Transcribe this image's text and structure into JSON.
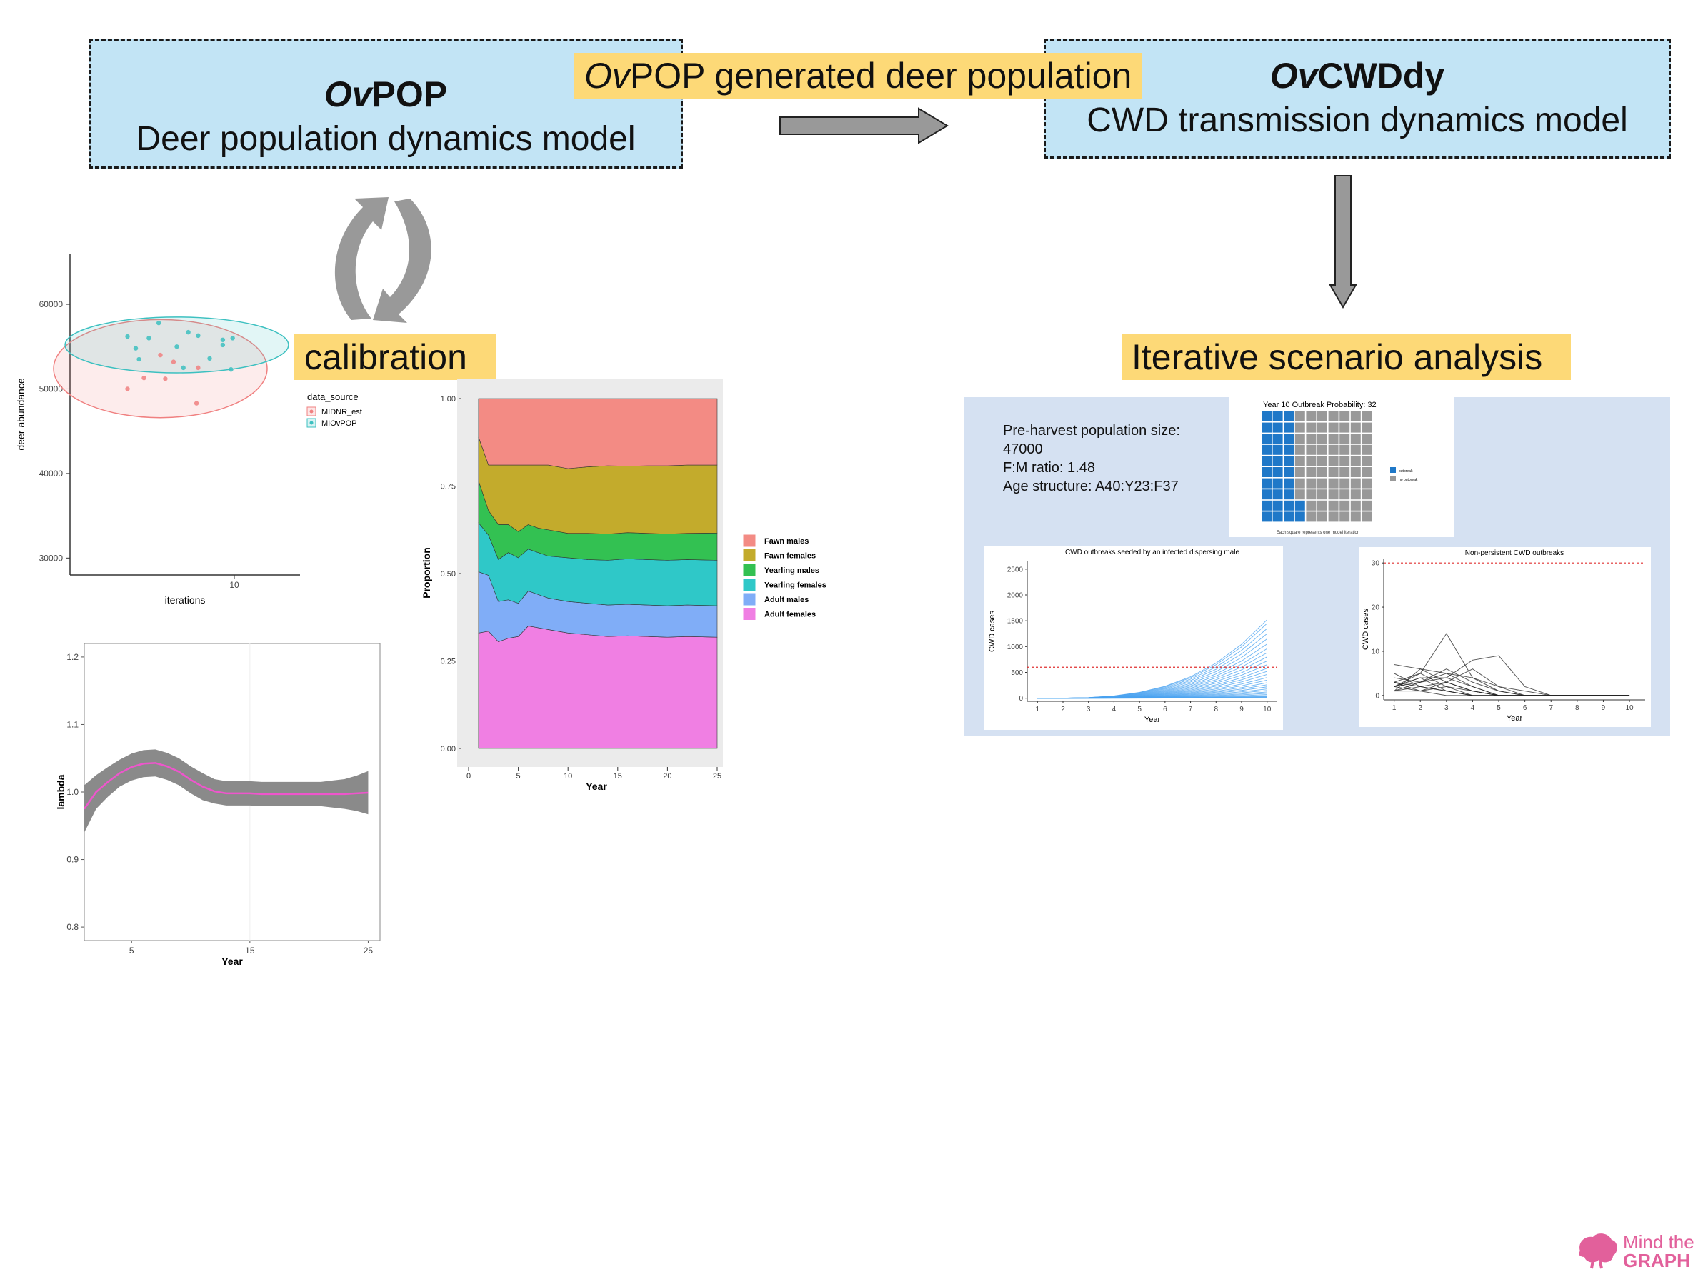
{
  "ovpop_box": {
    "title_italic": "Ov",
    "title_rest": "POP",
    "subtitle": "Deer population dynamics model"
  },
  "ovcwd_box": {
    "title_italic": "Ov",
    "title_rest": "CWDdy",
    "subtitle": "CWD transmission dynamics model"
  },
  "arrow_label": {
    "italic": "Ov",
    "rest": "POP generated deer population"
  },
  "calibration_label": "calibration",
  "scenario_label": "Iterative scenario analysis",
  "scenario_info": {
    "line1": "Pre-harvest population size:",
    "line2": "47000",
    "line3": "F:M ratio: 1.48",
    "line4": "Age structure: A40:Y23:F37"
  },
  "logo": {
    "line1": "Mind the",
    "line2": "GRAPH"
  },
  "chart_data": [
    {
      "id": "scatter",
      "type": "scatter",
      "xlabel": "iterations",
      "ylabel": "deer abundance",
      "xticks": [
        "10"
      ],
      "yticks": [
        "30000",
        "40000",
        "50000",
        "60000"
      ],
      "ylim": [
        28000,
        66000
      ],
      "xlim": [
        0,
        14
      ],
      "legend_title": "data_source",
      "legend_position": "right",
      "series": [
        {
          "name": "MIDNR_est",
          "color": "#f08080",
          "points": [
            [
              3.5,
              50000
            ],
            [
              4.5,
              51300
            ],
            [
              5.8,
              51200
            ],
            [
              7.7,
              48300
            ],
            [
              5.5,
              54000
            ],
            [
              6.3,
              53200
            ],
            [
              7.8,
              52500
            ]
          ],
          "ellipse": {
            "cx": 5.5,
            "cy": 52400,
            "rx": 6.5,
            "ry": 5800
          }
        },
        {
          "name": "MIOvPOP",
          "color": "#3cc0c0",
          "points": [
            [
              3.5,
              56200
            ],
            [
              4,
              54800
            ],
            [
              4.8,
              56000
            ],
            [
              5.4,
              57800
            ],
            [
              6.5,
              55000
            ],
            [
              7.2,
              56700
            ],
            [
              7.8,
              56300
            ],
            [
              8.5,
              53600
            ],
            [
              9.3,
              55800
            ],
            [
              9.3,
              55200
            ],
            [
              9.8,
              52300
            ],
            [
              9.9,
              56000
            ],
            [
              4.2,
              53500
            ],
            [
              6.9,
              52500
            ]
          ],
          "ellipse": {
            "cx": 6.5,
            "cy": 55200,
            "rx": 6.8,
            "ry": 3300
          }
        }
      ]
    },
    {
      "id": "lambda",
      "type": "line",
      "xlabel": "Year",
      "ylabel": "lambda",
      "xticks": [
        "5",
        "15",
        "25"
      ],
      "yticks": [
        "0.8",
        "0.9",
        "1.0",
        "1.1",
        "1.2"
      ],
      "xlim": [
        1,
        26
      ],
      "ylim": [
        0.78,
        1.22
      ],
      "series": [
        {
          "name": "",
          "color": "#ee55cc",
          "x": [
            1,
            2,
            3,
            4,
            5,
            6,
            7,
            8,
            9,
            10,
            11,
            12,
            13,
            14,
            15,
            16,
            17,
            18,
            19,
            20,
            21,
            22,
            23,
            24,
            25
          ],
          "y": [
            0.975,
            1.0,
            1.015,
            1.028,
            1.037,
            1.042,
            1.043,
            1.038,
            1.03,
            1.018,
            1.008,
            1.001,
            0.998,
            0.998,
            0.998,
            0.997,
            0.997,
            0.997,
            0.997,
            0.997,
            0.997,
            0.997,
            0.997,
            0.998,
            0.999
          ],
          "band_halfwidth": [
            0.035,
            0.025,
            0.022,
            0.02,
            0.02,
            0.02,
            0.02,
            0.02,
            0.02,
            0.02,
            0.02,
            0.018,
            0.018,
            0.018,
            0.018,
            0.018,
            0.018,
            0.018,
            0.018,
            0.018,
            0.018,
            0.02,
            0.022,
            0.026,
            0.032
          ]
        }
      ]
    },
    {
      "id": "proportion",
      "type": "area",
      "xlabel": "Year",
      "ylabel": "Proportion",
      "xticks": [
        "0",
        "5",
        "10",
        "15",
        "20",
        "25"
      ],
      "yticks": [
        "0.00",
        "0.25",
        "0.50",
        "0.75",
        "1.00"
      ],
      "xlim": [
        0,
        25
      ],
      "ylim": [
        0,
        1
      ],
      "legend_position": "right",
      "x": [
        1,
        2,
        3,
        4,
        5,
        6,
        7,
        8,
        10,
        12,
        14,
        16,
        18,
        20,
        22,
        25
      ],
      "series": [
        {
          "name": "Adult females",
          "color": "#f07fe3",
          "values": [
            0.33,
            0.335,
            0.305,
            0.315,
            0.32,
            0.35,
            0.345,
            0.34,
            0.33,
            0.325,
            0.32,
            0.322,
            0.32,
            0.318,
            0.32,
            0.318
          ]
        },
        {
          "name": "Adult males",
          "color": "#80adf7",
          "values": [
            0.175,
            0.16,
            0.115,
            0.11,
            0.095,
            0.1,
            0.095,
            0.09,
            0.09,
            0.09,
            0.09,
            0.09,
            0.09,
            0.09,
            0.09,
            0.09
          ]
        },
        {
          "name": "Yearling females",
          "color": "#2fc8c8",
          "values": [
            0.14,
            0.115,
            0.12,
            0.135,
            0.13,
            0.12,
            0.12,
            0.12,
            0.125,
            0.125,
            0.128,
            0.13,
            0.13,
            0.13,
            0.13,
            0.13
          ]
        },
        {
          "name": "Yearling males",
          "color": "#33c152",
          "values": [
            0.12,
            0.07,
            0.1,
            0.08,
            0.075,
            0.07,
            0.07,
            0.075,
            0.07,
            0.075,
            0.075,
            0.075,
            0.075,
            0.075,
            0.075,
            0.078
          ]
        },
        {
          "name": "Fawn females",
          "color": "#c3ab2c",
          "values": [
            0.125,
            0.13,
            0.17,
            0.17,
            0.19,
            0.17,
            0.18,
            0.185,
            0.185,
            0.19,
            0.195,
            0.19,
            0.193,
            0.195,
            0.195,
            0.194
          ]
        },
        {
          "name": "Fawn males",
          "color": "#f38b84",
          "values": [
            0.11,
            0.19,
            0.19,
            0.19,
            0.19,
            0.19,
            0.19,
            0.19,
            0.2,
            0.195,
            0.192,
            0.193,
            0.192,
            0.192,
            0.19,
            0.19
          ]
        }
      ]
    },
    {
      "id": "waffle",
      "type": "heatmap",
      "title": "Year 10 Outbreak Probability: 32",
      "caption": "Each square represents one model iteration",
      "cells": 100,
      "filled": 32,
      "colors": {
        "outbreak": "#1f78c8",
        "no_outbreak": "#999999"
      },
      "legend": [
        "outbreak",
        "no outbreak"
      ]
    },
    {
      "id": "cwd_outbreaks",
      "type": "line",
      "title": "CWD outbreaks seeded by an infected dispersing male",
      "xlabel": "Year",
      "ylabel": "CWD cases",
      "xticks": [
        "1",
        "2",
        "3",
        "4",
        "5",
        "6",
        "7",
        "8",
        "9",
        "10"
      ],
      "yticks": [
        "0",
        "500",
        "1000",
        "1500",
        "2000",
        "2500"
      ],
      "xlim": [
        0.6,
        10.4
      ],
      "ylim": [
        -60,
        2650
      ],
      "threshold": 600,
      "line_color": "#4aa3f0",
      "final_values": [
        1520,
        1450,
        1350,
        1250,
        1150,
        1050,
        960,
        880,
        800,
        720,
        650,
        580,
        520,
        460,
        400,
        350,
        300,
        260,
        220,
        180,
        150,
        120,
        95,
        70,
        50,
        35,
        25,
        15,
        10,
        5
      ]
    },
    {
      "id": "nonpersistent",
      "type": "line",
      "title": "Non-persistent CWD outbreaks",
      "xlabel": "Year",
      "ylabel": "CWD cases",
      "xticks": [
        "1",
        "2",
        "3",
        "4",
        "5",
        "6",
        "7",
        "8",
        "9",
        "10"
      ],
      "yticks": [
        "0",
        "10",
        "20",
        "30"
      ],
      "xlim": [
        0.6,
        10.6
      ],
      "ylim": [
        -1,
        31
      ],
      "threshold": 30,
      "line_color": "#222222",
      "series_y": [
        [
          7,
          6,
          3,
          1,
          0,
          0,
          0,
          0,
          0,
          0
        ],
        [
          3,
          5,
          14,
          4,
          1,
          0,
          0,
          0,
          0,
          0
        ],
        [
          2,
          4,
          4,
          8,
          9,
          2,
          0,
          0,
          0,
          0
        ],
        [
          1,
          6,
          5,
          2,
          0,
          0,
          0,
          0,
          0,
          0
        ],
        [
          4,
          3,
          6,
          3,
          1,
          0,
          0,
          0,
          0,
          0
        ],
        [
          2,
          5,
          2,
          0,
          0,
          0,
          0,
          0,
          0,
          0
        ],
        [
          3,
          2,
          1,
          0,
          0,
          0,
          0,
          0,
          0,
          0
        ],
        [
          1,
          3,
          4,
          2,
          0,
          0,
          0,
          0,
          0,
          0
        ],
        [
          2,
          1,
          3,
          6,
          2,
          0,
          0,
          0,
          0,
          0
        ],
        [
          5,
          2,
          1,
          0,
          0,
          0,
          0,
          0,
          0,
          0
        ],
        [
          1,
          1,
          2,
          1,
          0,
          0,
          0,
          0,
          0,
          0
        ],
        [
          2,
          4,
          1,
          0,
          0,
          0,
          0,
          0,
          0,
          0
        ],
        [
          3,
          1,
          0,
          0,
          0,
          0,
          0,
          0,
          0,
          0
        ],
        [
          1,
          2,
          3,
          1,
          0,
          0,
          0,
          0,
          0,
          0
        ],
        [
          2,
          3,
          5,
          4,
          2,
          1,
          0,
          0,
          0,
          0
        ]
      ]
    }
  ]
}
